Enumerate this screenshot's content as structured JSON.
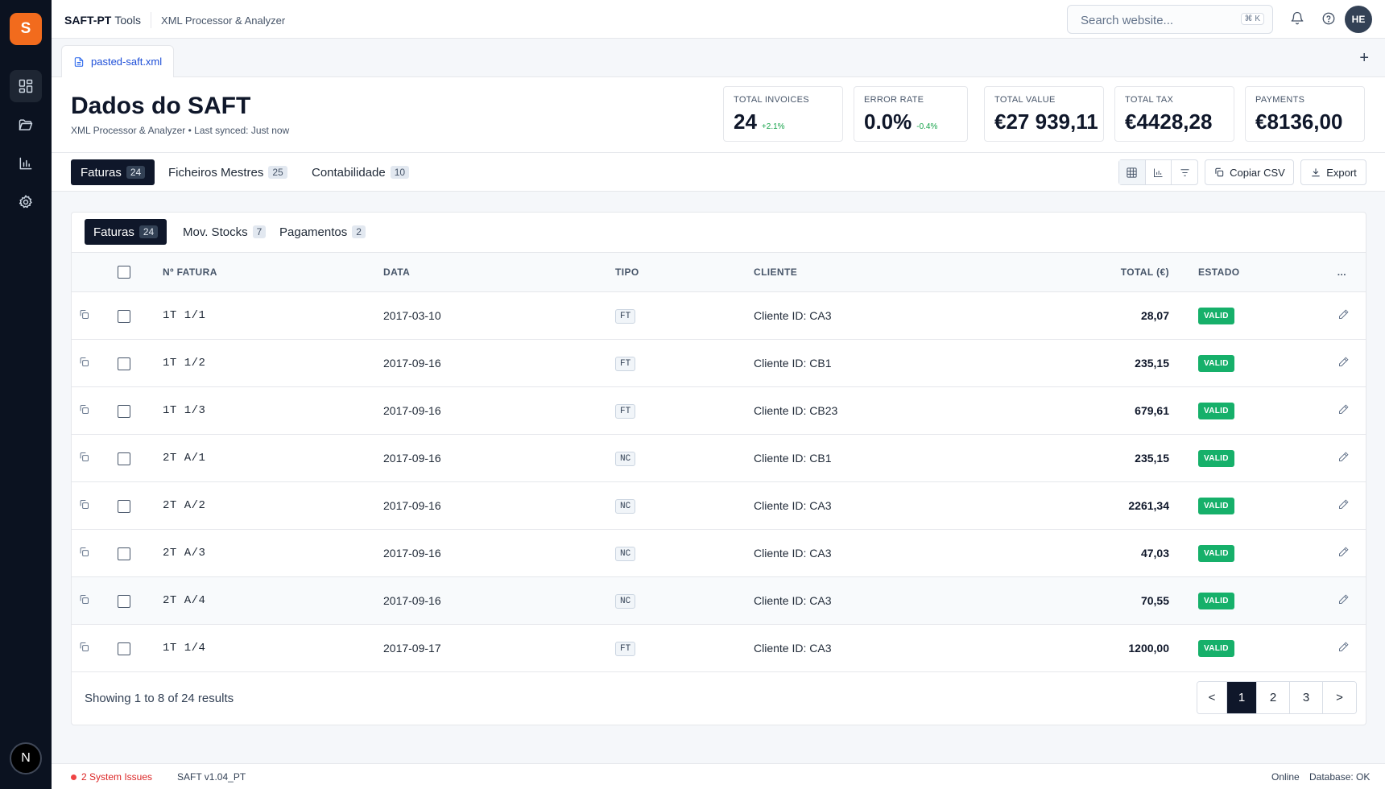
{
  "app": {
    "logo_letter": "S",
    "brand_name": "SAFT-PT",
    "brand_suffix": "Tools",
    "brand_subtitle": "XML Processor & Analyzer",
    "user_initials": "HE",
    "bottom_badge": "N"
  },
  "search": {
    "placeholder": "Search website...",
    "shortcut": "⌘ K"
  },
  "file_tab": {
    "label": "pasted-saft.xml",
    "add_label": "+"
  },
  "header": {
    "title": "Dados do SAFT",
    "subtitle": "XML Processor & Analyzer • Last synced: Just now"
  },
  "kpis": [
    {
      "label": "TOTAL INVOICES",
      "value": "24",
      "delta": "+2.1%"
    },
    {
      "label": "ERROR RATE",
      "value": "0.0%",
      "delta": "-0.4%"
    },
    {
      "label": "TOTAL VALUE",
      "value": "€27 939,11",
      "delta": ""
    },
    {
      "label": "TOTAL TAX",
      "value": "€4428,28",
      "delta": ""
    },
    {
      "label": "PAYMENTS",
      "value": "€8136,00",
      "delta": ""
    }
  ],
  "main_tabs": [
    {
      "label": "Faturas",
      "count": "24"
    },
    {
      "label": "Ficheiros Mestres",
      "count": "25"
    },
    {
      "label": "Contabilidade",
      "count": "10"
    }
  ],
  "toolbar": {
    "copy_csv": "Copiar CSV",
    "export": "Export"
  },
  "sub_tabs": [
    {
      "label": "Faturas",
      "count": "24"
    },
    {
      "label": "Mov. Stocks",
      "count": "7"
    },
    {
      "label": "Pagamentos",
      "count": "2"
    }
  ],
  "table": {
    "headers": {
      "number": "Nº FATURA",
      "date": "DATA",
      "type": "TIPO",
      "client": "CLIENTE",
      "total": "TOTAL (€)",
      "status": "ESTADO",
      "more": "..."
    },
    "rows": [
      {
        "number": "1T 1/1",
        "date": "2017-03-10",
        "type": "FT",
        "client": "Cliente ID: CA3",
        "total": "28,07",
        "status": "VALID"
      },
      {
        "number": "1T 1/2",
        "date": "2017-09-16",
        "type": "FT",
        "client": "Cliente ID: CB1",
        "total": "235,15",
        "status": "VALID"
      },
      {
        "number": "1T 1/3",
        "date": "2017-09-16",
        "type": "FT",
        "client": "Cliente ID: CB23",
        "total": "679,61",
        "status": "VALID"
      },
      {
        "number": "2T A/1",
        "date": "2017-09-16",
        "type": "NC",
        "client": "Cliente ID: CB1",
        "total": "235,15",
        "status": "VALID"
      },
      {
        "number": "2T A/2",
        "date": "2017-09-16",
        "type": "NC",
        "client": "Cliente ID: CA3",
        "total": "2261,34",
        "status": "VALID"
      },
      {
        "number": "2T A/3",
        "date": "2017-09-16",
        "type": "NC",
        "client": "Cliente ID: CA3",
        "total": "47,03",
        "status": "VALID"
      },
      {
        "number": "2T A/4",
        "date": "2017-09-16",
        "type": "NC",
        "client": "Cliente ID: CA3",
        "total": "70,55",
        "status": "VALID"
      },
      {
        "number": "1T 1/4",
        "date": "2017-09-17",
        "type": "FT",
        "client": "Cliente ID: CA3",
        "total": "1200,00",
        "status": "VALID"
      }
    ]
  },
  "pagination": {
    "summary": "Showing 1 to 8 of 24 results",
    "prev": "<",
    "pages": [
      "1",
      "2",
      "3"
    ],
    "next": ">",
    "current": "1"
  },
  "statusbar": {
    "issues": "2 System Issues",
    "version": "SAFT v1.04_PT",
    "online": "Online",
    "database": "Database: OK"
  },
  "colors": {
    "accent": "#f26b1d",
    "sidebar": "#0b1220",
    "active_tab": "#0f172a",
    "valid": "#16b06a",
    "positive_delta": "#16a34a",
    "issues": "#dc2626"
  }
}
